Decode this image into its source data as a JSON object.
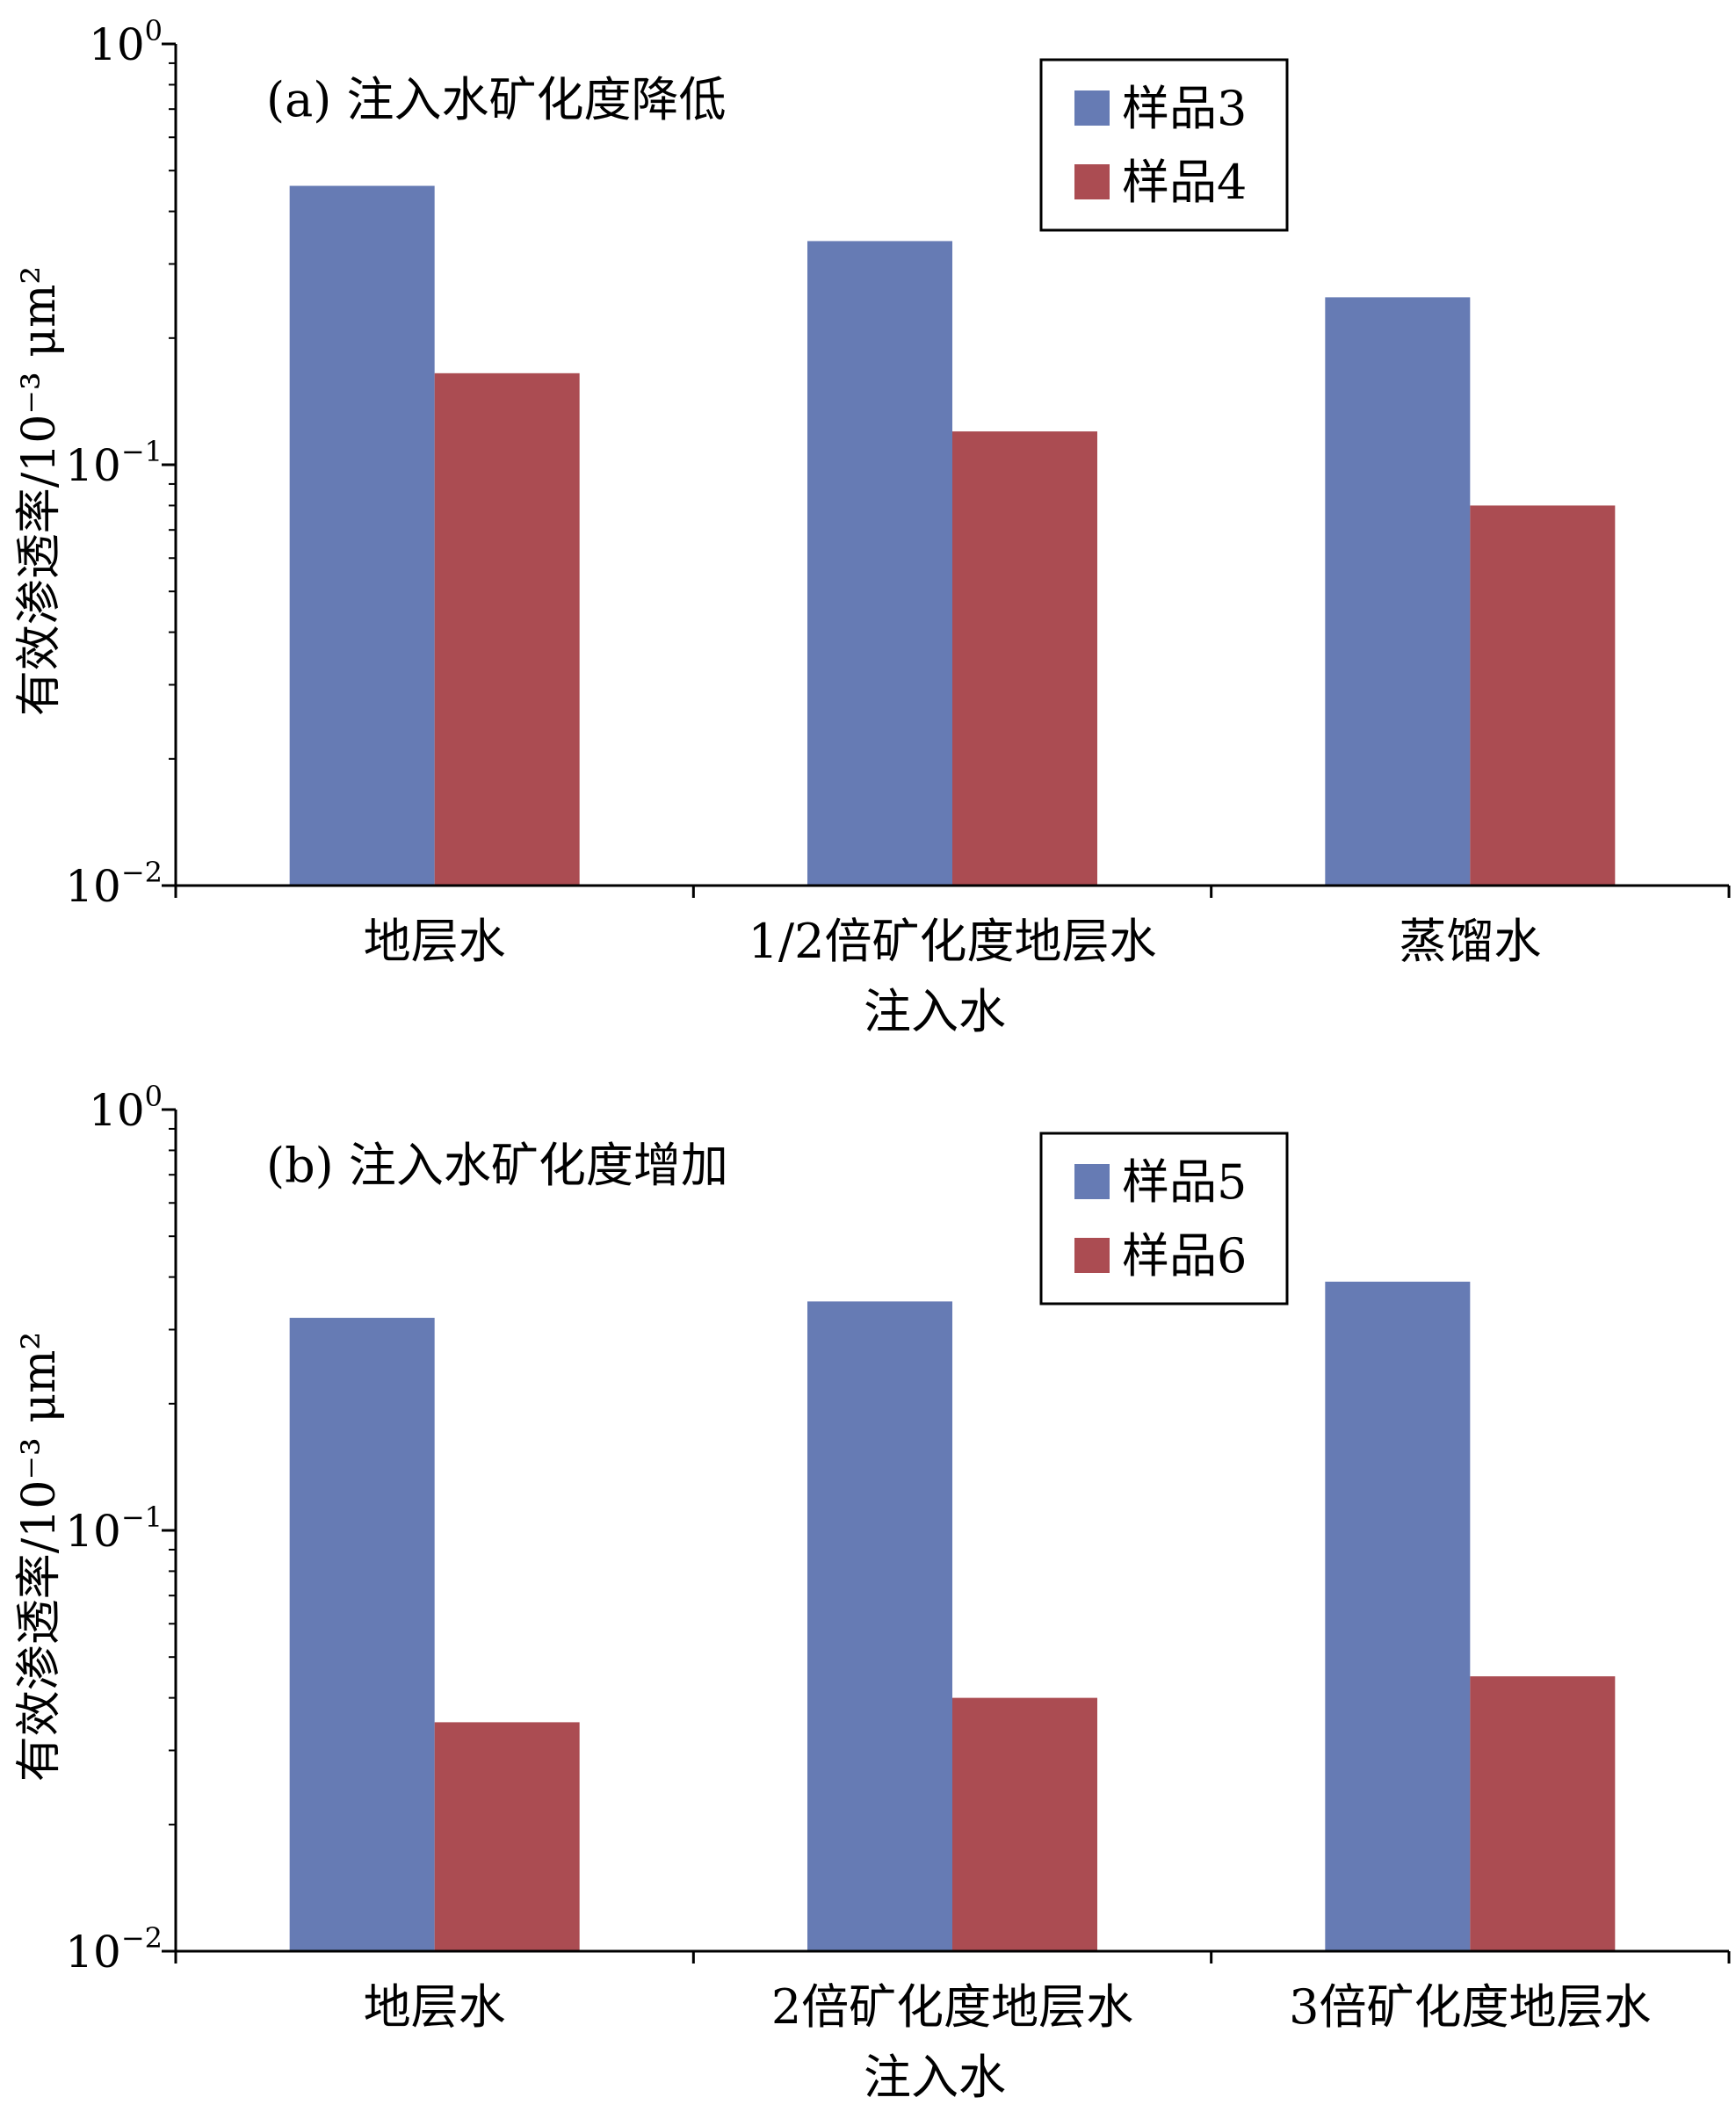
{
  "chart_data": [
    {
      "type": "bar",
      "panel_label": "(a) 注入水矿化度降低",
      "categories": [
        "地层水",
        "1/2倍矿化度地层水",
        "蒸馏水"
      ],
      "series": [
        {
          "name": "样品3",
          "values": [
            0.46,
            0.34,
            0.25
          ],
          "color": "#667BB4"
        },
        {
          "name": "样品4",
          "values": [
            0.165,
            0.12,
            0.08
          ],
          "color": "#AB4C52"
        }
      ],
      "xlabel": "注入水",
      "ylabel": "有效渗透率/10⁻³ μm²",
      "yscale": "log",
      "ylim": [
        0.01,
        1
      ],
      "ytick_labels": [
        {
          "base": "10",
          "exp": "0"
        },
        {
          "base": "10",
          "exp": "−1"
        },
        {
          "base": "10",
          "exp": "−2"
        }
      ],
      "legend_position": "top-right",
      "grid": false
    },
    {
      "type": "bar",
      "panel_label": "(b) 注入水矿化度增加",
      "categories": [
        "地层水",
        "2倍矿化度地层水",
        "3倍矿化度地层水"
      ],
      "series": [
        {
          "name": "样品5",
          "values": [
            0.32,
            0.35,
            0.39
          ],
          "color": "#667BB4"
        },
        {
          "name": "样品6",
          "values": [
            0.035,
            0.04,
            0.045
          ],
          "color": "#AB4C52"
        }
      ],
      "xlabel": "注入水",
      "ylabel": "有效渗透率/10⁻³ μm²",
      "yscale": "log",
      "ylim": [
        0.01,
        1
      ],
      "ytick_labels": [
        {
          "base": "10",
          "exp": "0"
        },
        {
          "base": "10",
          "exp": "−1"
        },
        {
          "base": "10",
          "exp": "−2"
        }
      ],
      "legend_position": "top-right",
      "grid": false
    }
  ]
}
